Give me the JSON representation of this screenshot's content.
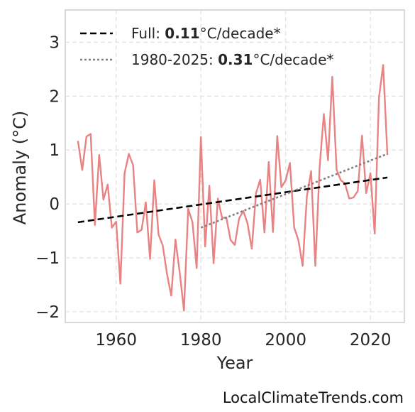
{
  "chart_data": {
    "type": "line",
    "xlabel": "Year",
    "ylabel": "Anomaly (°C)",
    "xlim": [
      1948,
      2028
    ],
    "ylim": [
      -2.2,
      3.6
    ],
    "xticks": [
      1960,
      1980,
      2000,
      2020
    ],
    "xtick_labels": [
      "1960",
      "1980",
      "2000",
      "2020"
    ],
    "yticks": [
      -2,
      -1,
      0,
      1,
      2,
      3
    ],
    "ytick_labels": [
      "−2",
      "−1",
      "0",
      "1",
      "2",
      "3"
    ],
    "grid": true,
    "legend_position": "top-left",
    "series": [
      {
        "color": "#e88283",
        "x": [
          1951,
          1952,
          1953,
          1954,
          1955,
          1956,
          1957,
          1958,
          1959,
          1960,
          1961,
          1962,
          1963,
          1964,
          1965,
          1966,
          1967,
          1968,
          1969,
          1970,
          1971,
          1972,
          1973,
          1974,
          1975,
          1976,
          1977,
          1978,
          1979,
          1980,
          1981,
          1982,
          1983,
          1984,
          1985,
          1986,
          1987,
          1988,
          1989,
          1990,
          1991,
          1992,
          1993,
          1994,
          1995,
          1996,
          1997,
          1998,
          1999,
          2000,
          2001,
          2002,
          2003,
          2004,
          2005,
          2006,
          2007,
          2008,
          2009,
          2010,
          2011,
          2012,
          2013,
          2014,
          2015,
          2016,
          2017,
          2018,
          2019,
          2020,
          2021,
          2022,
          2023,
          2024
        ],
        "y": [
          1.17,
          0.63,
          1.25,
          1.3,
          -0.39,
          0.91,
          0.08,
          0.36,
          -0.44,
          -0.33,
          -1.48,
          0.57,
          0.93,
          0.72,
          -0.53,
          -0.48,
          0.03,
          -1.02,
          0.44,
          -0.57,
          -0.77,
          -1.3,
          -1.7,
          -0.66,
          -1.27,
          -1.98,
          -0.09,
          -0.34,
          -1.19,
          1.24,
          -0.79,
          0.34,
          -1.1,
          0.1,
          -0.26,
          -0.25,
          -0.67,
          -0.76,
          -0.27,
          -0.13,
          -0.36,
          -0.83,
          0.2,
          0.45,
          -0.53,
          0.78,
          -0.52,
          1.26,
          0.31,
          0.44,
          0.76,
          -0.44,
          -0.67,
          -1.15,
          0.14,
          0.61,
          -1.15,
          0.67,
          1.67,
          0.81,
          2.36,
          0.64,
          0.44,
          0.38,
          0.1,
          0.12,
          0.24,
          1.27,
          0.2,
          0.57,
          -0.55,
          1.97,
          2.58,
          0.91
        ]
      },
      {
        "name": "Full: ",
        "name_bold": "0.11",
        "name_suffix": "°C/decade*",
        "color": "#000000",
        "style": "dashed",
        "x": [
          1951,
          2024
        ],
        "y": [
          -0.34,
          0.49
        ]
      },
      {
        "name": "1980-2025: ",
        "name_bold": "0.31",
        "name_suffix": "°C/decade*",
        "color": "#808080",
        "style": "dotted",
        "x": [
          1980,
          2024
        ],
        "y": [
          -0.44,
          0.93
        ]
      }
    ]
  },
  "watermark": "LocalClimateTrends.com"
}
